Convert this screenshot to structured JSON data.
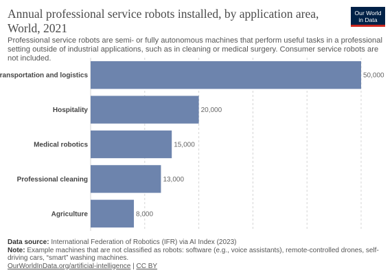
{
  "header": {
    "title": "Annual professional service robots installed, by application area, World, 2021",
    "subtitle": "Professional service robots are semi- or fully autonomous machines that perform useful tasks in a professional setting outside of industrial applications, such as in cleaning or medical surgery. Consumer service robots are not included.",
    "logo_line1": "Our World",
    "logo_line2": "in Data"
  },
  "chart_data": {
    "type": "bar",
    "orientation": "horizontal",
    "categories": [
      "Transportation and logistics",
      "Hospitality",
      "Medical robotics",
      "Professional cleaning",
      "Agriculture"
    ],
    "values": [
      50000,
      20000,
      15000,
      13000,
      8000
    ],
    "value_labels": [
      "50,000",
      "20,000",
      "15,000",
      "13,000",
      "8,000"
    ],
    "xlim": [
      0,
      50000
    ],
    "gridlines": [
      0,
      10000,
      20000,
      30000,
      40000,
      50000
    ],
    "grid": true,
    "bar_color": "#6d84ad"
  },
  "footer": {
    "source_label": "Data source:",
    "source_text": "International Federation of Robotics (IFR) via AI Index (2023)",
    "note_label": "Note:",
    "note_text": "Example machines that are not classified as robots: software (e.g., voice assistants), remote-controlled drones, self-driving cars, “smart” washing machines.",
    "link_text": "OurWorldInData.org/artificial-intelligence",
    "separator": " | ",
    "license": "CC BY"
  }
}
